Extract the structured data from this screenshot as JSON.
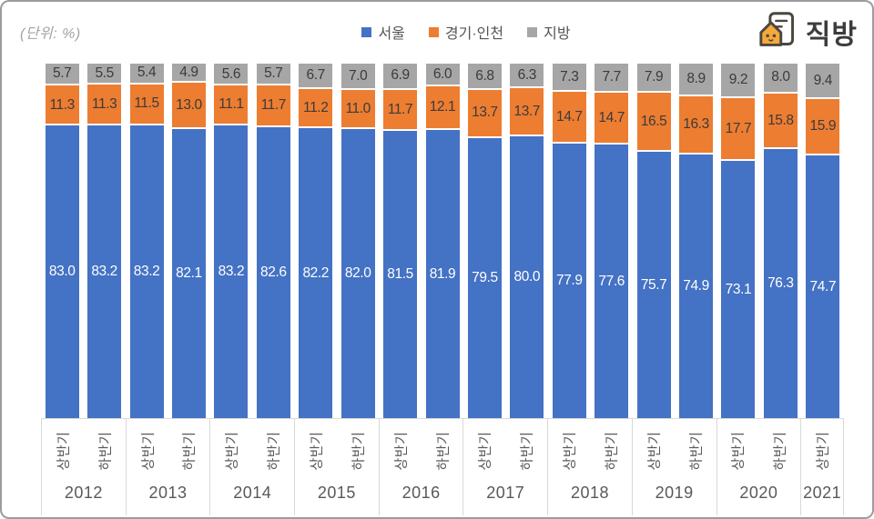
{
  "header": {
    "unit_label": "(단위: %)",
    "logo_text": "직방"
  },
  "chart_data": {
    "type": "bar",
    "stacked": true,
    "percent_total": 100,
    "unit": "%",
    "legend_position": "top-center",
    "grid": false,
    "groups": [
      {
        "year": "2012",
        "halves": [
          "상반기",
          "하반기"
        ]
      },
      {
        "year": "2013",
        "halves": [
          "상반기",
          "하반기"
        ]
      },
      {
        "year": "2014",
        "halves": [
          "상반기",
          "하반기"
        ]
      },
      {
        "year": "2015",
        "halves": [
          "상반기",
          "하반기"
        ]
      },
      {
        "year": "2016",
        "halves": [
          "상반기",
          "하반기"
        ]
      },
      {
        "year": "2017",
        "halves": [
          "상반기",
          "하반기"
        ]
      },
      {
        "year": "2018",
        "halves": [
          "상반기",
          "하반기"
        ]
      },
      {
        "year": "2019",
        "halves": [
          "상반기",
          "하반기"
        ]
      },
      {
        "year": "2020",
        "halves": [
          "상반기",
          "하반기"
        ]
      },
      {
        "year": "2021",
        "halves": [
          "상반기"
        ]
      }
    ],
    "series": [
      {
        "name": "서울",
        "key": "seoul",
        "color": "#4472C4",
        "label_color": "#FFFFFF",
        "values": [
          83.0,
          83.2,
          83.2,
          82.1,
          83.2,
          82.6,
          82.2,
          82.0,
          81.5,
          81.9,
          79.5,
          80.0,
          77.9,
          77.6,
          75.7,
          74.9,
          73.1,
          76.3,
          74.7
        ]
      },
      {
        "name": "경기·인천",
        "key": "gyeonggi-incheon",
        "color": "#ED7D31",
        "label_color": "#3B3B3B",
        "values": [
          11.3,
          11.3,
          11.5,
          13.0,
          11.1,
          11.7,
          11.2,
          11.0,
          11.7,
          12.1,
          13.7,
          13.7,
          14.7,
          14.7,
          16.5,
          16.3,
          17.7,
          15.8,
          15.9
        ]
      },
      {
        "name": "지방",
        "key": "jibang",
        "color": "#A6A6A6",
        "label_color": "#3B3B3B",
        "values": [
          5.7,
          5.5,
          5.4,
          4.9,
          5.6,
          5.7,
          6.7,
          7.0,
          6.9,
          6.0,
          6.8,
          6.3,
          7.3,
          7.7,
          7.9,
          8.9,
          9.2,
          8.0,
          9.4
        ]
      }
    ]
  }
}
